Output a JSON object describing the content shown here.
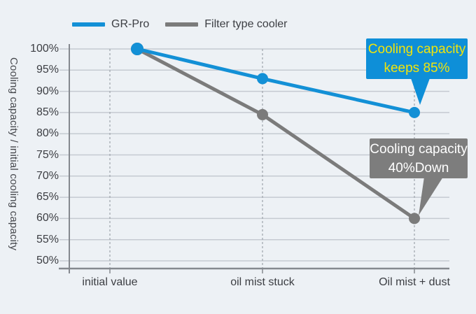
{
  "colors": {
    "background": "#edf1f5",
    "grid": "#c5cad1",
    "axis": "#85898f",
    "dashed_guide": "#a3a9b0",
    "label_text": "#3c3e43",
    "gr_pro_blue": "#1390d6",
    "filter_gray": "#7b7b7b",
    "callout_blue_bg": "#0e8fd8",
    "callout_blue_text": "#f2e40a",
    "callout_gray_bg": "#7d7d7d",
    "callout_gray_text": "#ffffff"
  },
  "chart_data": {
    "type": "line",
    "categories": [
      "initial value",
      "oil mist stuck",
      "Oil mist + dust"
    ],
    "series": [
      {
        "name": "GR-Pro",
        "color": "#1390d6",
        "values": [
          100,
          93,
          85
        ]
      },
      {
        "name": "Filter type cooler",
        "color": "#7b7b7b",
        "values": [
          100,
          84.5,
          60
        ]
      }
    ],
    "title": "",
    "xlabel": "",
    "ylabel": "Cooling capacity / initial cooling capacity",
    "ylim": [
      50,
      100
    ],
    "yticks": [
      100,
      95,
      90,
      85,
      80,
      75,
      70,
      65,
      60,
      55,
      50
    ],
    "ytick_suffix": "%",
    "grid": "horizontal",
    "guide_lines": "dashed vertical at each category",
    "legend_position": "top-left",
    "annotations": [
      {
        "target_series": "GR-Pro",
        "target_category": "Oil mist + dust",
        "text_lines": [
          "Cooling capacity",
          "keeps 85%"
        ],
        "bg": "#0e8fd8",
        "text_color": "#f2e40a"
      },
      {
        "target_series": "Filter type cooler",
        "target_category": "Oil mist + dust",
        "text_lines": [
          "Cooling capacity",
          "40%Down"
        ],
        "bg": "#7d7d7d",
        "text_color": "#ffffff"
      }
    ]
  }
}
